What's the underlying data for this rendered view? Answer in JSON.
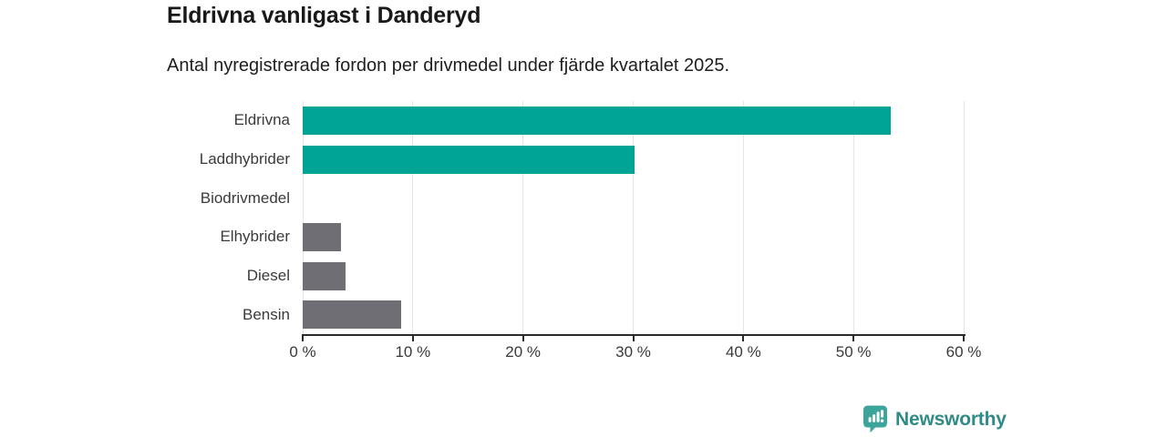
{
  "header": {
    "title": "Eldrivna vanligast i Danderyd",
    "subtitle": "Antal nyregistrerade fordon per drivmedel under fjärde kvartalet 2025."
  },
  "chart_data": {
    "type": "bar",
    "orientation": "horizontal",
    "title": "Eldrivna vanligast i Danderyd",
    "subtitle": "Antal nyregistrerade fordon per drivmedel under fjärde kvartalet 2025.",
    "categories": [
      "Eldrivna",
      "Laddhybrider",
      "Biodrivmedel",
      "Elhybrider",
      "Diesel",
      "Bensin"
    ],
    "values": [
      53.4,
      30.1,
      0,
      3.5,
      3.9,
      8.9
    ],
    "unit": "%",
    "bar_colors": [
      "#00A497",
      "#00A497",
      "#6E6E74",
      "#6E6E74",
      "#6E6E74",
      "#6E6E74"
    ],
    "xlim": [
      0,
      60
    ],
    "x_ticks": [
      0,
      10,
      20,
      30,
      40,
      50,
      60
    ],
    "x_tick_labels": [
      "0 %",
      "10 %",
      "20 %",
      "30 %",
      "40 %",
      "50 %",
      "60 %"
    ],
    "grid": true,
    "legend": "none"
  },
  "colors": {
    "accent_teal": "#00A497",
    "neutral_gray": "#6E6E74",
    "gridline": "#E4E4E4",
    "axis": "#2B2B2B",
    "tick_text": "#3A3A3A",
    "logo_icon": "#3DA49B",
    "logo_text": "#2E8B87"
  },
  "footer": {
    "brand": "Newsworthy"
  }
}
